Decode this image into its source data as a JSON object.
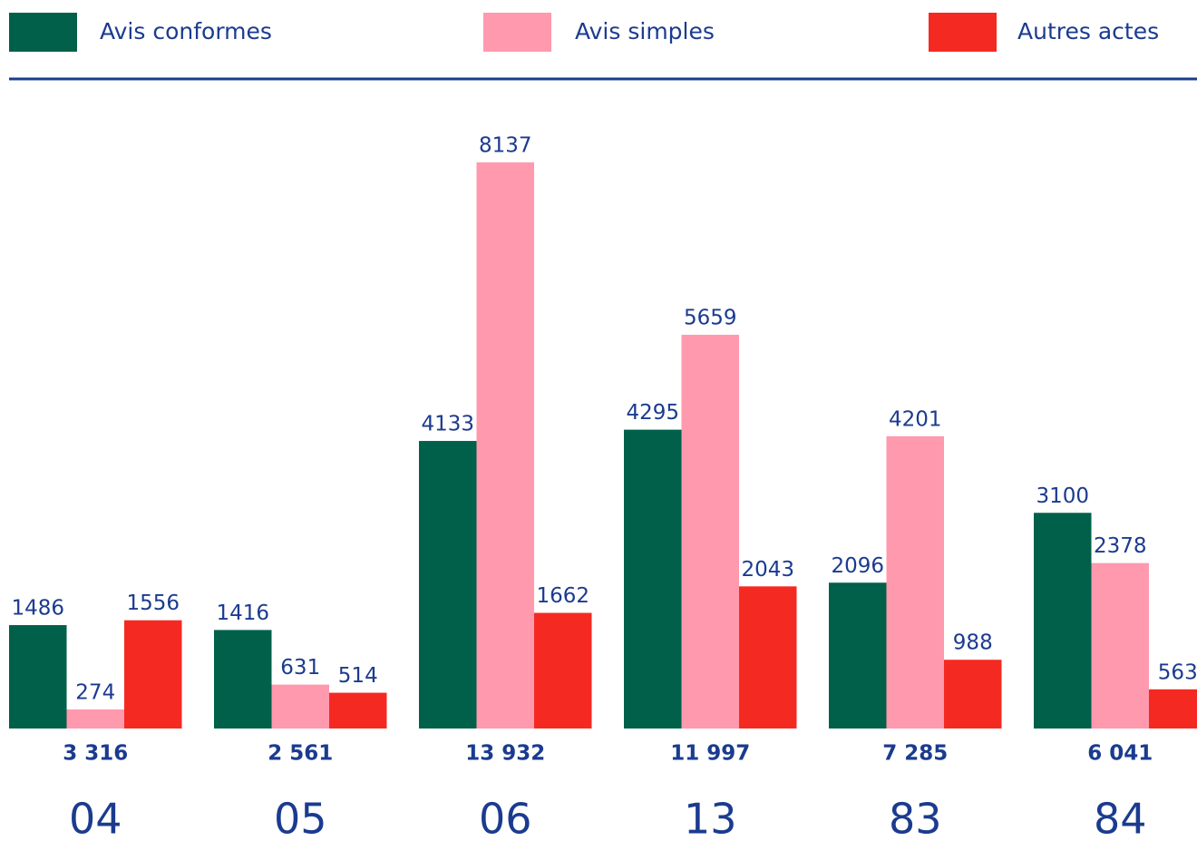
{
  "chart_data": {
    "type": "bar",
    "categories": [
      "04",
      "05",
      "06",
      "13",
      "83",
      "84"
    ],
    "series": [
      {
        "name": "Avis conformes",
        "color": "#00604a",
        "values": [
          1486,
          1416,
          4133,
          4295,
          2096,
          3100
        ]
      },
      {
        "name": "Avis simples",
        "color": "#ff99ae",
        "values": [
          274,
          631,
          8137,
          5659,
          4201,
          2378
        ]
      },
      {
        "name": "Autres actes",
        "color": "#f42a22",
        "values": [
          1556,
          514,
          1662,
          2043,
          988,
          563
        ]
      }
    ],
    "totals": [
      3316,
      2561,
      13932,
      11997,
      7285,
      6041
    ],
    "total_labels": [
      "3 316",
      "2 561",
      "13 932",
      "11 997",
      "7 285",
      "6 041"
    ],
    "legend": "top"
  }
}
